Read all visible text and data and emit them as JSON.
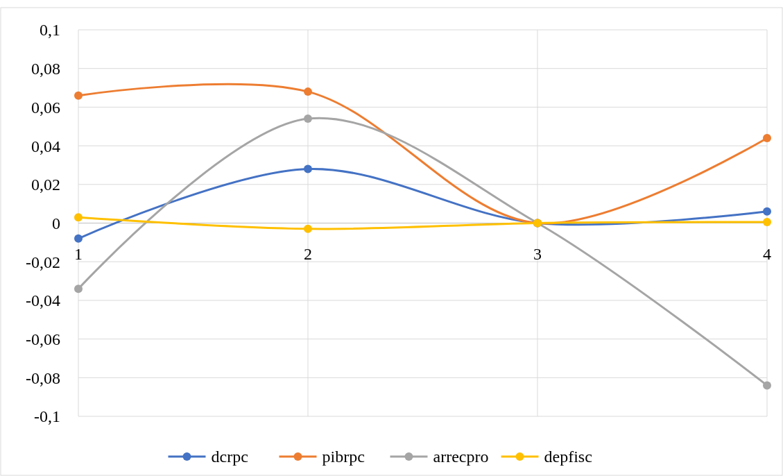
{
  "chart_data": {
    "type": "line",
    "x": [
      1,
      2,
      3,
      4
    ],
    "xlim": [
      1,
      4
    ],
    "xticks": [
      1,
      2,
      3,
      4
    ],
    "ylim": [
      -0.1,
      0.1
    ],
    "yticks": [
      {
        "value": -0.1,
        "label": "-0,1"
      },
      {
        "value": -0.08,
        "label": "-0,08"
      },
      {
        "value": -0.06,
        "label": "-0,06"
      },
      {
        "value": -0.04,
        "label": "-0,04"
      },
      {
        "value": -0.02,
        "label": "-0,02"
      },
      {
        "value": 0,
        "label": "0"
      },
      {
        "value": 0.02,
        "label": "0,02"
      },
      {
        "value": 0.04,
        "label": "0,04"
      },
      {
        "value": 0.06,
        "label": "0,06"
      },
      {
        "value": 0.08,
        "label": "0,08"
      },
      {
        "value": 0.1,
        "label": "0,1"
      }
    ],
    "grid": true,
    "legend": "bottom",
    "marker": "circle",
    "line_style": "solid",
    "series": [
      {
        "name": "dcrpc",
        "color": "#4472c4",
        "values": [
          -0.008,
          0.028,
          0,
          0.006
        ]
      },
      {
        "name": "pibrpc",
        "color": "#ed7d31",
        "values": [
          0.066,
          0.068,
          0,
          0.044
        ]
      },
      {
        "name": "arrecpro",
        "color": "#a5a5a5",
        "values": [
          -0.034,
          0.054,
          0,
          -0.084
        ]
      },
      {
        "name": "depfisc",
        "color": "#ffc000",
        "values": [
          0.003,
          -0.003,
          0,
          0.0005
        ]
      }
    ]
  }
}
